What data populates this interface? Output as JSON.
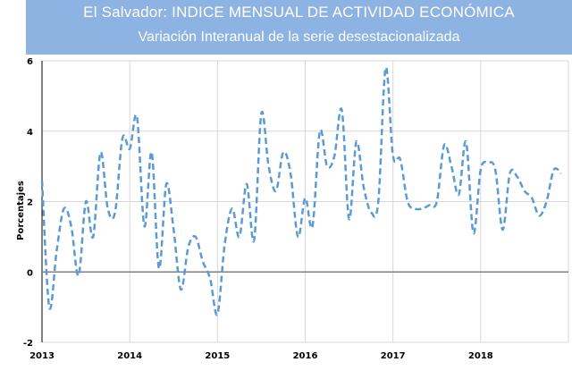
{
  "header": {
    "title": "El Salvador: INDICE MENSUAL DE ACTIVIDAD ECONÓMICA",
    "subtitle": "Variación Interanual de la serie desestacionalizada"
  },
  "colors": {
    "line": "#5b9bd5",
    "banner": "#8db3e2",
    "grid": "#d9d9d9",
    "zero": "#808080"
  },
  "chart_data": {
    "type": "line",
    "title": "El Salvador: INDICE MENSUAL DE ACTIVIDAD ECONÓMICA",
    "subtitle": "Variación Interanual de la serie desestacionalizada",
    "xlabel": "",
    "ylabel": "Porcentajes",
    "ylim": [
      -2,
      6
    ],
    "yticks": [
      -2,
      0,
      2,
      4,
      6
    ],
    "xlim": [
      2013,
      2019
    ],
    "xticks": [
      "2013",
      "2014",
      "2015",
      "2016",
      "2017",
      "2018"
    ],
    "grid": true,
    "line_style": "dashed",
    "series": [
      {
        "name": "",
        "x": [
          2013.0,
          2013.083,
          2013.167,
          2013.25,
          2013.333,
          2013.417,
          2013.5,
          2013.583,
          2013.667,
          2013.75,
          2013.833,
          2013.917,
          2014.0,
          2014.083,
          2014.167,
          2014.25,
          2014.333,
          2014.417,
          2014.5,
          2014.583,
          2014.667,
          2014.75,
          2014.833,
          2014.917,
          2015.0,
          2015.083,
          2015.167,
          2015.25,
          2015.333,
          2015.417,
          2015.5,
          2015.583,
          2015.667,
          2015.75,
          2015.833,
          2015.917,
          2016.0,
          2016.083,
          2016.167,
          2016.25,
          2016.333,
          2016.417,
          2016.5,
          2016.583,
          2016.667,
          2016.75,
          2016.833,
          2016.917,
          2017.0,
          2017.083,
          2017.167,
          2017.25,
          2017.333,
          2017.417,
          2017.5,
          2017.583,
          2017.667,
          2017.75,
          2017.833,
          2017.917,
          2018.0,
          2018.083,
          2018.167,
          2018.25,
          2018.333,
          2018.417,
          2018.5,
          2018.583,
          2018.667,
          2018.75,
          2018.833,
          2018.917
        ],
        "y": [
          2.6,
          -1.0,
          0.6,
          1.8,
          1.3,
          -0.1,
          2.0,
          1.0,
          3.4,
          1.8,
          1.7,
          3.8,
          3.5,
          4.4,
          1.3,
          3.4,
          0.1,
          2.5,
          1.2,
          -0.5,
          0.7,
          1.0,
          0.3,
          -0.2,
          -1.2,
          0.8,
          1.8,
          1.0,
          2.5,
          0.9,
          4.5,
          3.0,
          2.3,
          3.4,
          2.8,
          1.0,
          2.1,
          1.3,
          4.0,
          3.0,
          3.3,
          4.6,
          1.5,
          3.7,
          2.4,
          1.7,
          2.0,
          5.8,
          3.3,
          3.2,
          2.0,
          1.8,
          1.8,
          1.9,
          2.0,
          3.6,
          3.0,
          2.2,
          3.7,
          1.1,
          2.9,
          3.1,
          2.9,
          1.2,
          2.8,
          2.7,
          2.3,
          2.1,
          1.6,
          2.0,
          2.9,
          2.8
        ]
      }
    ]
  }
}
